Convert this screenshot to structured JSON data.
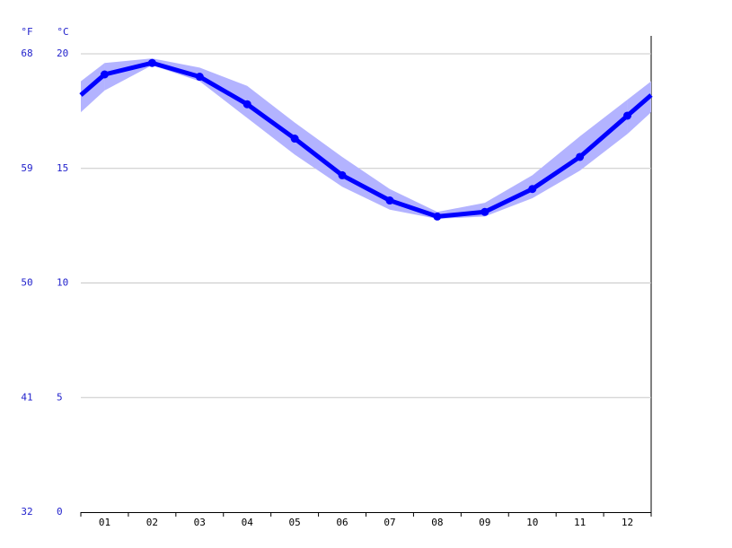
{
  "chart_data": {
    "type": "line",
    "y_unit": "°C",
    "y2_unit": "°F",
    "categories": [
      "01",
      "02",
      "03",
      "04",
      "05",
      "06",
      "07",
      "08",
      "09",
      "10",
      "11",
      "12"
    ],
    "values": [
      19.1,
      19.6,
      19.0,
      17.8,
      16.3,
      14.7,
      13.6,
      12.9,
      13.1,
      14.1,
      15.5,
      17.3
    ],
    "band_high": [
      19.6,
      19.8,
      19.4,
      18.6,
      17.0,
      15.5,
      14.1,
      13.1,
      13.5,
      14.7,
      16.4,
      18.0
    ],
    "band_low": [
      18.4,
      19.5,
      18.8,
      17.2,
      15.6,
      14.2,
      13.2,
      12.8,
      12.9,
      13.7,
      14.9,
      16.5
    ],
    "color": "#0000ff",
    "band_color": "#b3b3ff",
    "ylim": [
      0,
      20
    ],
    "yticks": [
      0,
      5,
      10,
      15,
      20
    ],
    "y2lim": [
      32,
      68
    ],
    "y2ticks": [
      32,
      41,
      50,
      59,
      68
    ],
    "grid": true
  }
}
